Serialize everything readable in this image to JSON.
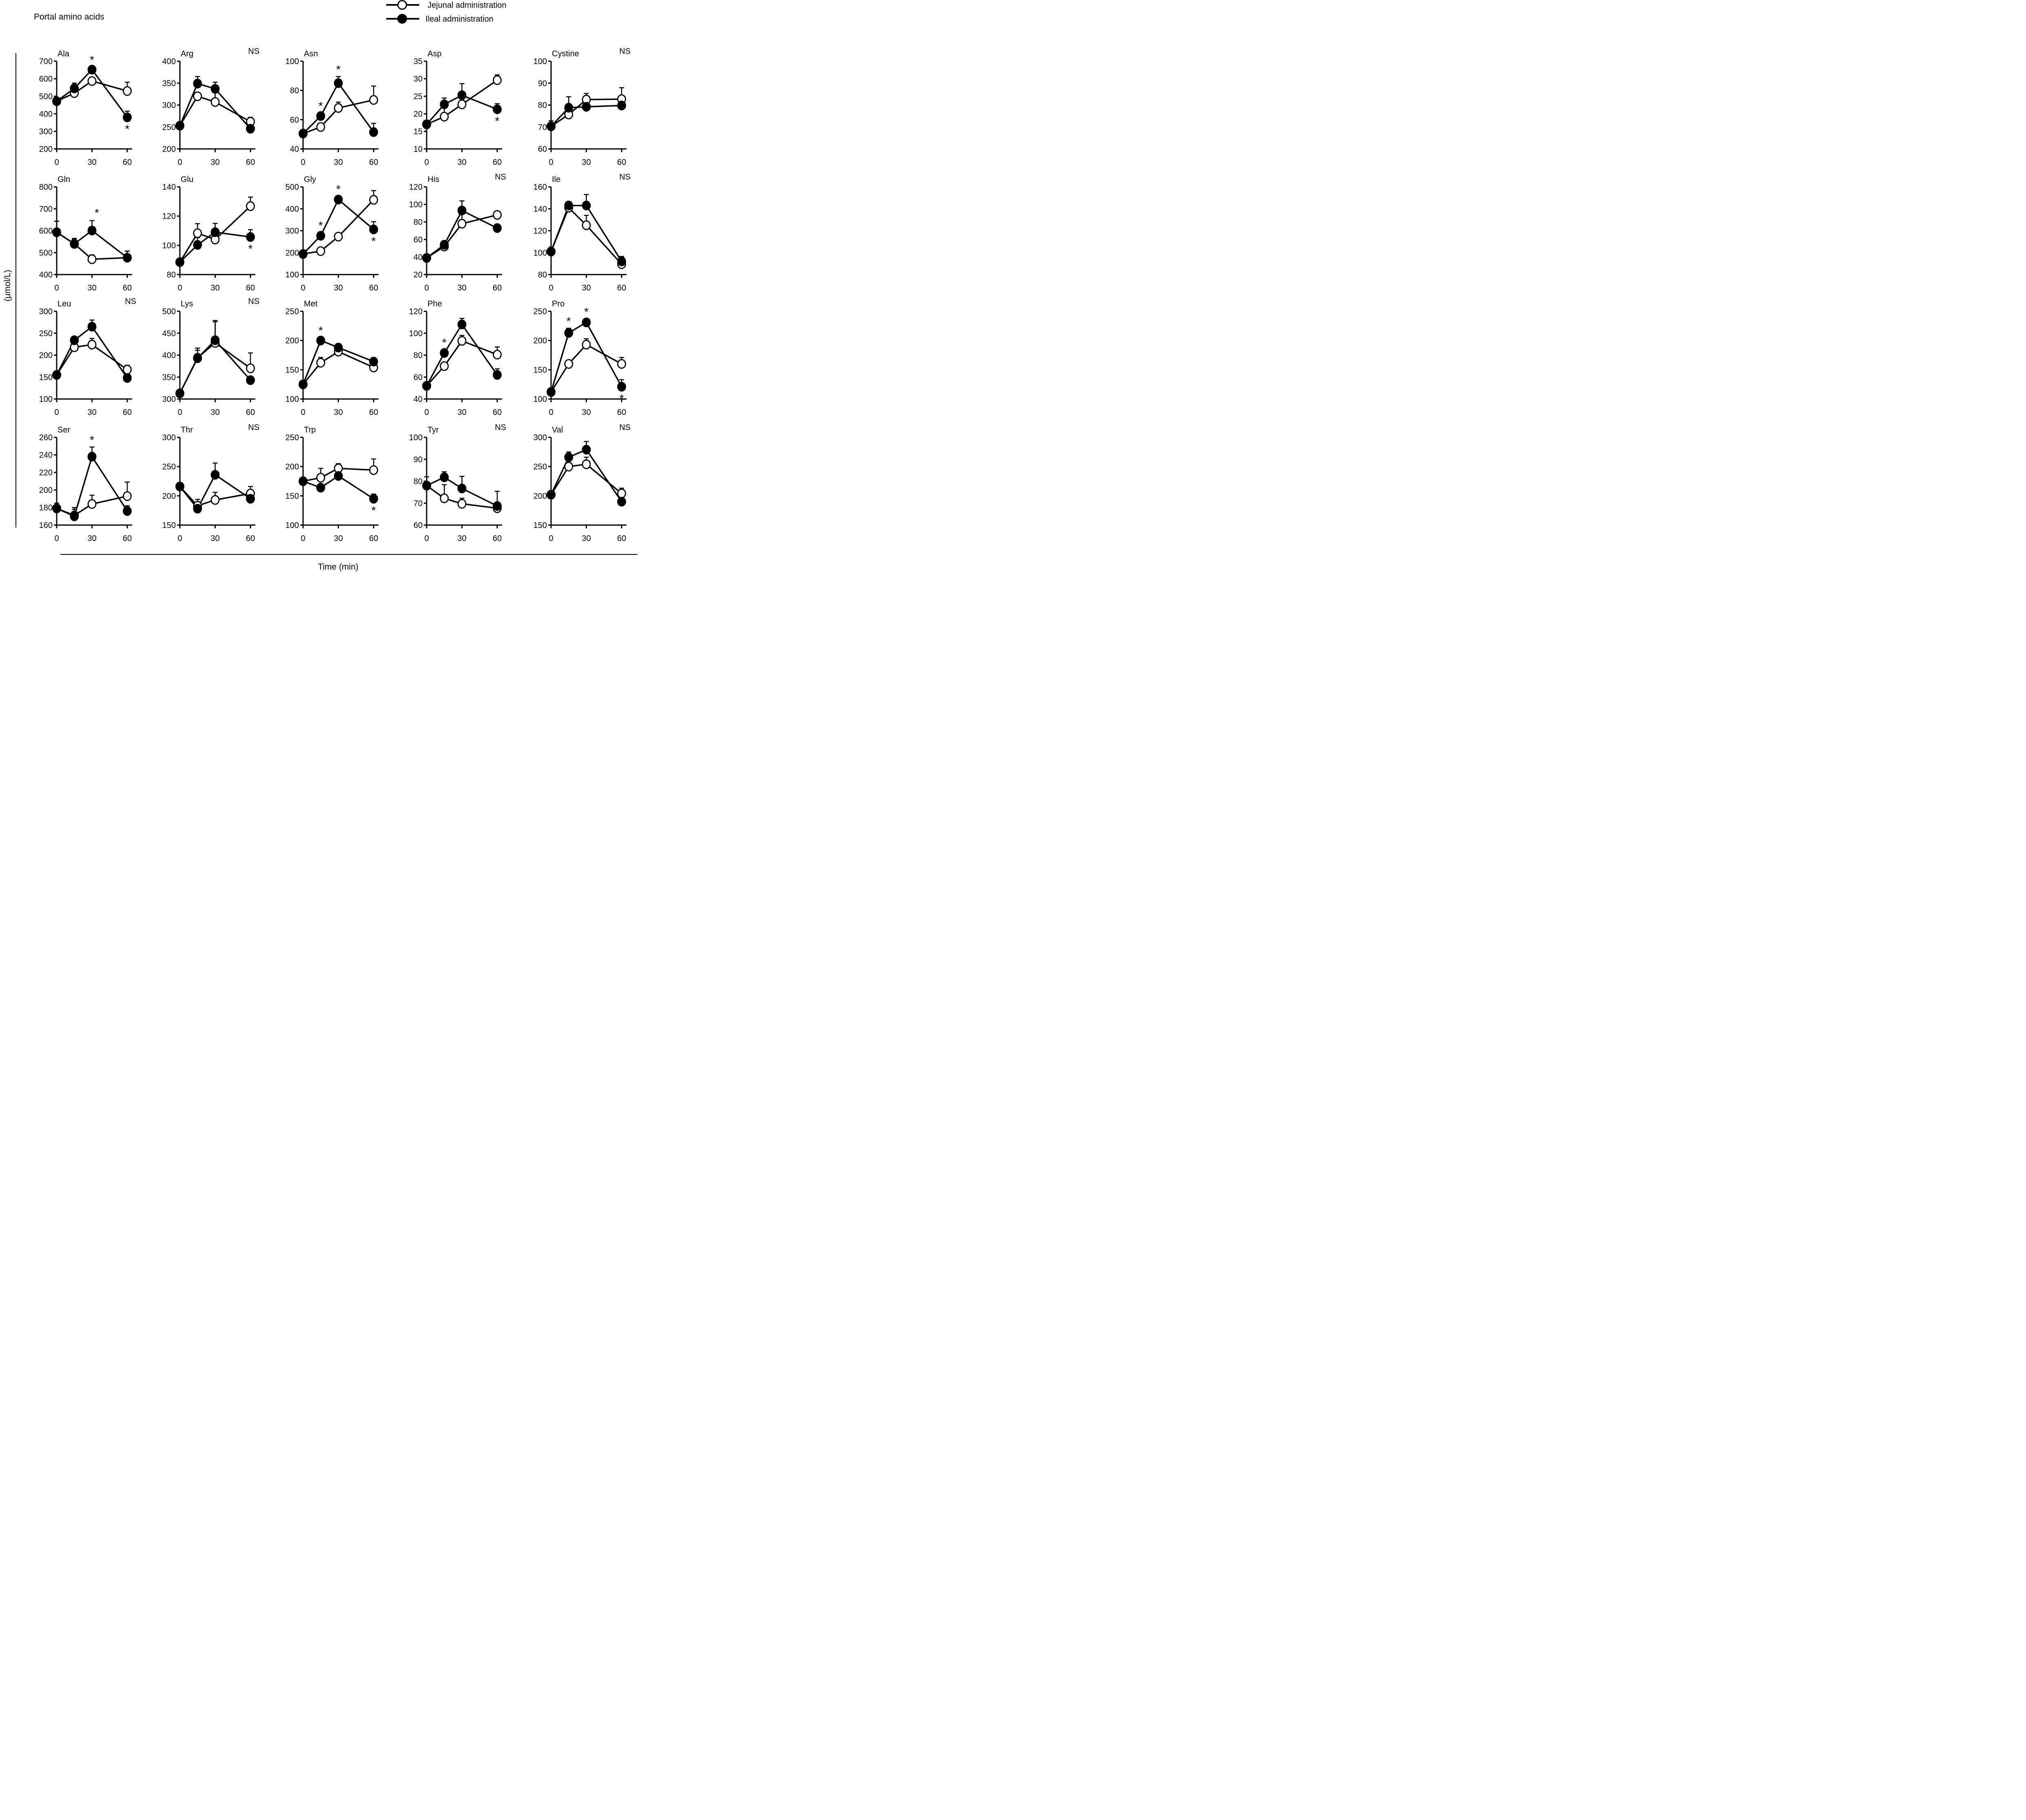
{
  "figure": {
    "title": "Portal amino acids",
    "ylabel": "(μmol/L)",
    "xlabel": "Time (min)",
    "sig_marker": "*",
    "ns_label": "NS"
  },
  "legend": {
    "placement": "top-right",
    "items": [
      {
        "name": "Jejunal administration",
        "marker": "open-circle"
      },
      {
        "name": "Ileal administration",
        "marker": "filled-circle"
      }
    ]
  },
  "chart_data": {
    "type": "line",
    "x": [
      0,
      15,
      30,
      60
    ],
    "xticks": [
      0,
      30,
      60
    ],
    "xlim": [
      0,
      60
    ],
    "series_names": [
      "Jejunal administration",
      "Ileal administration"
    ],
    "panels": [
      {
        "title": "Ala",
        "ylim": [
          200,
          700
        ],
        "yticks": [
          200,
          300,
          400,
          500,
          600,
          700
        ],
        "ns": false,
        "jejunal": [
          472,
          518,
          587,
          530
        ],
        "jejunal_err": [
          15,
          35,
          15,
          50
        ],
        "ileal": [
          472,
          545,
          652,
          380
        ],
        "ileal_err": [
          15,
          30,
          15,
          35
        ],
        "sig": [
          {
            "x": 30,
            "pos": "above"
          },
          {
            "x": 60,
            "pos": "below"
          }
        ]
      },
      {
        "title": "Arg",
        "ylim": [
          200,
          400
        ],
        "yticks": [
          200,
          250,
          300,
          350,
          400
        ],
        "ns": true,
        "jejunal": [
          253,
          320,
          307,
          262
        ],
        "jejunal_err": [
          5,
          8,
          23,
          10
        ],
        "ileal": [
          253,
          349,
          337,
          246
        ],
        "ileal_err": [
          5,
          16,
          15,
          5
        ],
        "sig": []
      },
      {
        "title": "Asn",
        "ylim": [
          40,
          100
        ],
        "yticks": [
          40,
          60,
          80,
          100
        ],
        "ns": false,
        "jejunal": [
          50.5,
          55,
          68,
          73.5
        ],
        "jejunal_err": [
          1,
          1.5,
          4,
          9.5
        ],
        "ileal": [
          50.5,
          62.5,
          85,
          51.5
        ],
        "ileal_err": [
          1,
          2,
          4.5,
          6
        ],
        "sig": [
          {
            "x": 15,
            "pos": "above"
          },
          {
            "x": 30,
            "pos": "above"
          }
        ]
      },
      {
        "title": "Asp",
        "ylim": [
          10,
          35
        ],
        "yticks": [
          10,
          15,
          20,
          25,
          30,
          35
        ],
        "ns": false,
        "jejunal": [
          17,
          19.2,
          22.7,
          29.6
        ],
        "jejunal_err": [
          0.5,
          2.7,
          1.8,
          1.5
        ],
        "ileal": [
          17,
          22.7,
          25.3,
          21.3
        ],
        "ileal_err": [
          0.5,
          1.8,
          3.3,
          1.6
        ],
        "sig": [
          {
            "x": 60,
            "pos": "below"
          }
        ]
      },
      {
        "title": "Cystine",
        "ylim": [
          60,
          100
        ],
        "yticks": [
          60,
          70,
          80,
          90,
          100
        ],
        "ns": true,
        "jejunal": [
          70.3,
          75.7,
          82.5,
          82.7
        ],
        "jejunal_err": [
          2.5,
          1.5,
          2.8,
          5.2
        ],
        "ileal": [
          70.3,
          78.8,
          79.2,
          79.8
        ],
        "ileal_err": [
          2.5,
          5,
          1,
          1
        ],
        "sig": []
      },
      {
        "title": "Gln",
        "ylim": [
          400,
          800
        ],
        "yticks": [
          400,
          500,
          600,
          700,
          800
        ],
        "ns": false,
        "jejunal": [
          593,
          540,
          470,
          477
        ],
        "jejunal_err": [
          50,
          20,
          20,
          30
        ],
        "ileal": [
          593,
          540,
          601,
          477
        ],
        "ileal_err": [
          50,
          25,
          45,
          30
        ],
        "sig": [
          {
            "x": 30,
            "pos": "above-right"
          }
        ]
      },
      {
        "title": "Glu",
        "ylim": [
          80,
          140
        ],
        "yticks": [
          80,
          100,
          120,
          140
        ],
        "ns": false,
        "jejunal": [
          88.5,
          108.3,
          104,
          126.8
        ],
        "jejunal_err": [
          1,
          6.5,
          5,
          6.2
        ],
        "ileal": [
          88.5,
          100.3,
          109,
          105.7
        ],
        "ileal_err": [
          1,
          5,
          6,
          5
        ],
        "sig": [
          {
            "x": 60,
            "pos": "below"
          }
        ]
      },
      {
        "title": "Gly",
        "ylim": [
          100,
          500
        ],
        "yticks": [
          100,
          200,
          300,
          400,
          500
        ],
        "ns": false,
        "jejunal": [
          194,
          207,
          273,
          441
        ],
        "jejunal_err": [
          8,
          10,
          15,
          42
        ],
        "ileal": [
          194,
          277,
          442,
          306
        ],
        "ileal_err": [
          8,
          15,
          15,
          35
        ],
        "sig": [
          {
            "x": 15,
            "pos": "above"
          },
          {
            "x": 30,
            "pos": "above"
          },
          {
            "x": 60,
            "pos": "below"
          }
        ]
      },
      {
        "title": "His",
        "ylim": [
          20,
          120
        ],
        "yticks": [
          20,
          40,
          60,
          80,
          100,
          120
        ],
        "ns": true,
        "jejunal": [
          39,
          52,
          78,
          88
        ],
        "jejunal_err": [
          2,
          3,
          15,
          4
        ],
        "ileal": [
          39,
          54,
          93,
          73
        ],
        "ileal_err": [
          2,
          3,
          11,
          4
        ],
        "sig": []
      },
      {
        "title": "Ile",
        "ylim": [
          80,
          160
        ],
        "yticks": [
          80,
          100,
          120,
          140,
          160
        ],
        "ns": true,
        "jejunal": [
          101,
          141,
          125,
          89.5
        ],
        "jejunal_err": [
          4,
          4,
          9,
          5
        ],
        "ileal": [
          101,
          143,
          143,
          92
        ],
        "ileal_err": [
          4,
          3.5,
          10,
          4.5
        ],
        "sig": []
      },
      {
        "title": "Leu",
        "ylim": [
          100,
          300
        ],
        "yticks": [
          100,
          150,
          200,
          250,
          300
        ],
        "ns": true,
        "jejunal": [
          155,
          218,
          224,
          167
        ],
        "jejunal_err": [
          4,
          6,
          14,
          10
        ],
        "ileal": [
          155,
          234,
          265,
          148
        ],
        "ileal_err": [
          4,
          6,
          15,
          5
        ],
        "sig": []
      },
      {
        "title": "Lys",
        "ylim": [
          300,
          500
        ],
        "yticks": [
          300,
          350,
          400,
          450,
          500
        ],
        "ns": true,
        "jejunal": [
          313,
          394,
          428,
          370
        ],
        "jejunal_err": [
          4,
          22,
          48,
          35
        ],
        "ileal": [
          313,
          393,
          434,
          343
        ],
        "ileal_err": [
          4,
          18,
          45,
          8
        ],
        "sig": []
      },
      {
        "title": "Met",
        "ylim": [
          100,
          250
        ],
        "yticks": [
          100,
          150,
          200,
          250
        ],
        "ns": false,
        "jejunal": [
          125,
          162,
          181,
          154
        ],
        "jejunal_err": [
          3,
          9,
          9,
          9
        ],
        "ileal": [
          125,
          200,
          188,
          164
        ],
        "ileal_err": [
          3,
          5,
          6,
          5
        ],
        "sig": [
          {
            "x": 15,
            "pos": "above"
          }
        ]
      },
      {
        "title": "Phe",
        "ylim": [
          40,
          120
        ],
        "yticks": [
          40,
          60,
          80,
          100,
          120
        ],
        "ns": false,
        "jejunal": [
          52,
          70,
          93,
          80.5
        ],
        "jejunal_err": [
          2,
          3,
          5,
          7
        ],
        "ileal": [
          52,
          82,
          108,
          62
        ],
        "ileal_err": [
          2,
          3,
          5.5,
          5.5
        ],
        "sig": [
          {
            "x": 15,
            "pos": "above"
          }
        ]
      },
      {
        "title": "Pro",
        "ylim": [
          100,
          250
        ],
        "yticks": [
          100,
          150,
          200,
          250
        ],
        "ns": false,
        "jejunal": [
          112,
          160,
          193,
          160
        ],
        "jejunal_err": [
          3,
          5,
          10,
          11
        ],
        "ileal": [
          112,
          213,
          231,
          121
        ],
        "ileal_err": [
          3,
          8,
          6,
          12
        ],
        "sig": [
          {
            "x": 15,
            "pos": "above"
          },
          {
            "x": 30,
            "pos": "above"
          },
          {
            "x": 60,
            "pos": "below"
          }
        ]
      },
      {
        "title": "Ser",
        "ylim": [
          160,
          260
        ],
        "yticks": [
          160,
          180,
          200,
          220,
          240,
          260
        ],
        "ns": false,
        "jejunal": [
          179,
          171,
          184,
          193
        ],
        "jejunal_err": [
          6,
          9,
          10,
          16
        ],
        "ileal": [
          179,
          170,
          238,
          176
        ],
        "ileal_err": [
          6,
          8,
          11,
          6
        ],
        "sig": [
          {
            "x": 30,
            "pos": "above"
          }
        ]
      },
      {
        "title": "Thr",
        "ylim": [
          150,
          300
        ],
        "yticks": [
          150,
          200,
          250,
          300
        ],
        "ns": true,
        "jejunal": [
          216,
          183,
          193,
          204
        ],
        "jejunal_err": [
          4,
          11,
          13,
          12
        ],
        "ileal": [
          216,
          178,
          236,
          195
        ],
        "ileal_err": [
          4,
          5,
          20,
          6
        ],
        "sig": []
      },
      {
        "title": "Trp",
        "ylim": [
          100,
          250
        ],
        "yticks": [
          100,
          150,
          200,
          250
        ],
        "ns": false,
        "jejunal": [
          175,
          181,
          197,
          194
        ],
        "jejunal_err": [
          4,
          16,
          8,
          19
        ],
        "ileal": [
          175,
          164,
          184,
          145
        ],
        "ileal_err": [
          4,
          5,
          5,
          8
        ],
        "sig": [
          {
            "x": 60,
            "pos": "below"
          }
        ]
      },
      {
        "title": "Tyr",
        "ylim": [
          60,
          100
        ],
        "yticks": [
          60,
          70,
          80,
          90,
          100
        ],
        "ns": true,
        "jejunal": [
          78,
          72.2,
          69.7,
          67.7
        ],
        "jejunal_err": [
          4,
          6.2,
          2.5,
          2.5
        ],
        "ileal": [
          78,
          81.8,
          76.7,
          68.7
        ],
        "ileal_err": [
          4,
          2.5,
          5.5,
          6.7
        ],
        "sig": []
      },
      {
        "title": "Val",
        "ylim": [
          150,
          300
        ],
        "yticks": [
          150,
          200,
          250,
          300
        ],
        "ns": true,
        "jejunal": [
          202,
          250,
          254,
          204
        ],
        "jejunal_err": [
          6,
          6,
          12,
          9
        ],
        "ileal": [
          202,
          266,
          279,
          190
        ],
        "ileal_err": [
          6,
          9,
          14,
          4
        ],
        "sig": []
      }
    ]
  }
}
